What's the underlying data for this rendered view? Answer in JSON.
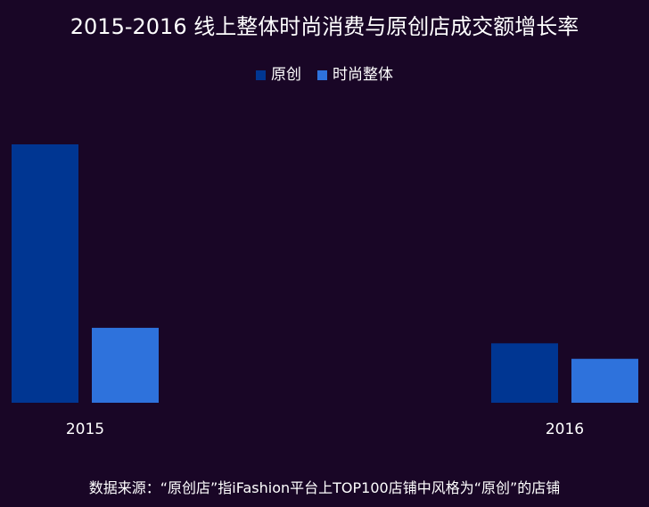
{
  "chart_data": {
    "type": "bar",
    "title": "2015-2016  线上整体时尚消费与原创店成交额增长率",
    "categories": [
      "2015",
      "2016"
    ],
    "series": [
      {
        "name": "原创",
        "values": [
          100,
          23
        ],
        "color": "#003692"
      },
      {
        "name": "时尚整体",
        "values": [
          29,
          17
        ],
        "color": "#2e72dc"
      }
    ],
    "ylim": [
      0,
      100
    ],
    "grid": false,
    "y_axis_visible": false,
    "legend": "top-center"
  },
  "footer": {
    "source": "数据来源：“原创店”指iFashion平台上TOP100店铺中风格为“原创”的店铺"
  }
}
